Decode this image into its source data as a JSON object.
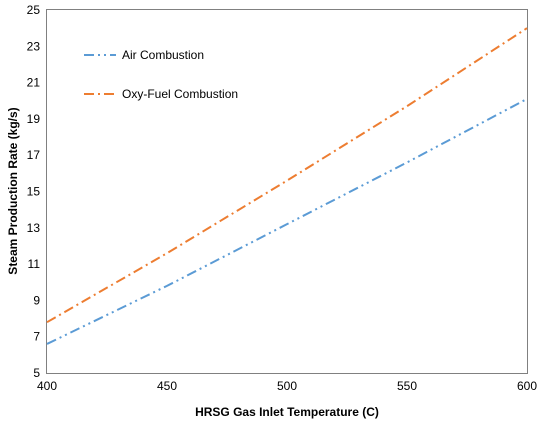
{
  "chart_data": {
    "type": "line",
    "xlabel": "HRSG  Gas Inlet Temperature (C)",
    "ylabel": "Steam Production Rate  (kg/s)",
    "xlim": [
      400,
      600
    ],
    "ylim": [
      5,
      25
    ],
    "xticks": [
      400,
      450,
      500,
      550,
      600
    ],
    "yticks": [
      5,
      7,
      9,
      11,
      13,
      15,
      17,
      19,
      21,
      23,
      25
    ],
    "grid": false,
    "legend_position": "top-left",
    "series": [
      {
        "name": "Air Combustion",
        "color": "#5B9BD5",
        "style": "dash-dot-dot",
        "x": [
          400,
          450,
          500,
          550,
          600
        ],
        "y": [
          6.6,
          9.8,
          13.2,
          16.6,
          20.1
        ]
      },
      {
        "name": "Oxy-Fuel Combustion",
        "color": "#ED7D31",
        "style": "dash-dot",
        "x": [
          400,
          450,
          500,
          550,
          600
        ],
        "y": [
          7.8,
          11.6,
          15.6,
          19.7,
          24.0
        ]
      }
    ]
  }
}
